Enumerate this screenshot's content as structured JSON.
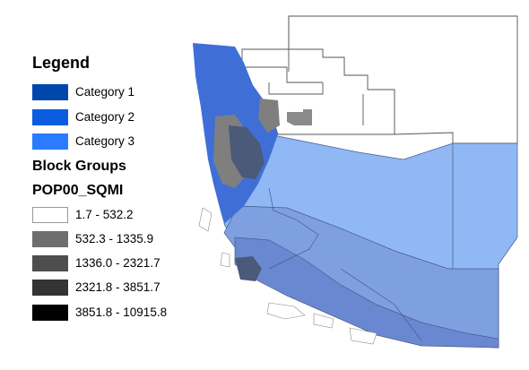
{
  "legend": {
    "title": "Legend",
    "categories": [
      {
        "label": "Category 1",
        "color": "#0047ab"
      },
      {
        "label": "Category 2",
        "color": "#0a5ce0"
      },
      {
        "label": "Category 3",
        "color": "#2a7bff"
      }
    ],
    "block_groups_title": "Block Groups",
    "field_title": "POP00_SQMI",
    "classes": [
      {
        "label": "1.7 - 532.2",
        "color": "#ffffff"
      },
      {
        "label": "532.3 - 1335.9",
        "color": "#6e6e6e"
      },
      {
        "label": "1336.0 - 2321.7",
        "color": "#4e4e4e"
      },
      {
        "label": "2321.8 - 3851.7",
        "color": "#343434"
      },
      {
        "label": "3851.8 - 10915.8",
        "color": "#000000"
      }
    ]
  },
  "map_colors": {
    "land": "#ffffff",
    "outline": "#555555",
    "zone_light": "#8fb8f5",
    "zone_mid": "#7fa0e0",
    "zone_deep": "#6a88d2",
    "coastal_blue": "#3f6fd6",
    "urban_gray": "#7f7f7f",
    "urban_dark": "#4a5a78"
  }
}
